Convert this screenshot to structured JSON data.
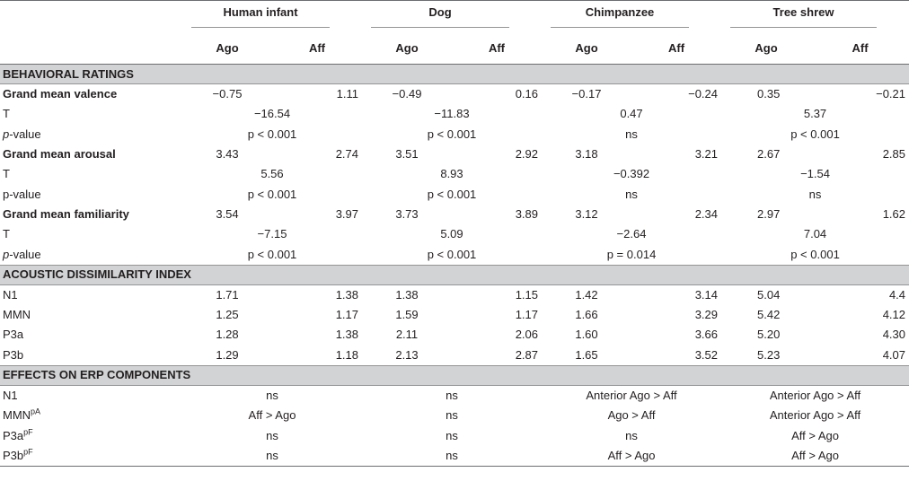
{
  "header": {
    "groups": [
      "Human infant",
      "Dog",
      "Chimpanzee",
      "Tree shrew"
    ],
    "ago": "Ago",
    "aff": "Aff"
  },
  "sections": {
    "behavioral": "BEHAVIORAL RATINGS",
    "acoustic": "ACOUSTIC DISSIMILARITY INDEX",
    "effects": "EFFECTS ON ERP COMPONENTS"
  },
  "behavioral": {
    "valence": {
      "label": "Grand mean valence",
      "values": [
        "−0.75",
        "1.11",
        "−0.49",
        "0.16",
        "−0.17",
        "−0.24",
        "0.35",
        "−0.21"
      ]
    },
    "valence_t": {
      "label": "T",
      "values": [
        "−16.54",
        "−11.83",
        "0.47",
        "5.37"
      ]
    },
    "valence_p": {
      "prefix": "p",
      "label": "-value",
      "values": [
        "p < 0.001",
        "p < 0.001",
        "ns",
        "p < 0.001"
      ]
    },
    "arousal": {
      "label": "Grand mean arousal",
      "values": [
        "3.43",
        "2.74",
        "3.51",
        "2.92",
        "3.18",
        "3.21",
        "2.67",
        "2.85"
      ]
    },
    "arousal_t": {
      "label": "T",
      "values": [
        "5.56",
        "8.93",
        "−0.392",
        "−1.54"
      ]
    },
    "arousal_p": {
      "label": "p-value",
      "values": [
        "p < 0.001",
        "p < 0.001",
        "ns",
        "ns"
      ]
    },
    "familiarity": {
      "label": "Grand mean familiarity",
      "values": [
        "3.54",
        "3.97",
        "3.73",
        "3.89",
        "3.12",
        "2.34",
        "2.97",
        "1.62"
      ]
    },
    "familiarity_t": {
      "label": "T",
      "values": [
        "−7.15",
        "5.09",
        "−2.64",
        "7.04"
      ]
    },
    "familiarity_p": {
      "prefix": "p",
      "label": "-value",
      "values": [
        "p < 0.001",
        "p < 0.001",
        "p = 0.014",
        "p < 0.001"
      ]
    }
  },
  "acoustic": [
    {
      "label": "N1",
      "values": [
        "1.71",
        "1.38",
        "1.38",
        "1.15",
        "1.42",
        "3.14",
        "5.04",
        "4.4"
      ]
    },
    {
      "label": "MMN",
      "values": [
        "1.25",
        "1.17",
        "1.59",
        "1.17",
        "1.66",
        "3.29",
        "5.42",
        "4.12"
      ]
    },
    {
      "label": "P3a",
      "values": [
        "1.28",
        "1.38",
        "2.11",
        "2.06",
        "1.60",
        "3.66",
        "5.20",
        "4.30"
      ]
    },
    {
      "label": "P3b",
      "values": [
        "1.29",
        "1.18",
        "2.13",
        "2.87",
        "1.65",
        "3.52",
        "5.23",
        "4.07"
      ]
    }
  ],
  "effects": [
    {
      "label": "N1",
      "sup": "",
      "values": [
        "ns",
        "ns",
        "Anterior Ago > Aff",
        "Anterior Ago > Aff"
      ]
    },
    {
      "label": "MMN",
      "sup": "pA",
      "values": [
        "Aff > Ago",
        "ns",
        "Ago > Aff",
        "Anterior Ago > Aff"
      ]
    },
    {
      "label": "P3a",
      "sup": "pF",
      "values": [
        "ns",
        "ns",
        "ns",
        "Aff > Ago"
      ]
    },
    {
      "label": "P3b",
      "sup": "pF",
      "values": [
        "ns",
        "ns",
        "Aff > Ago",
        "Aff > Ago"
      ]
    }
  ]
}
